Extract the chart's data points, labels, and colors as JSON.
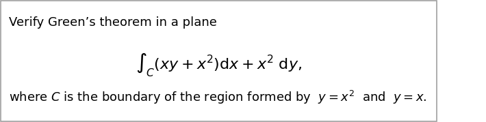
{
  "title_text": "Verify Green’s theorem in a plane",
  "integral_formula": "$\\int_C (xy + x^2)\\mathrm{d}x + x^2\\ \\mathrm{d}y,$",
  "body_text_parts": [
    "where ",
    "C",
    " is the boundary of the region formed by  ",
    "y",
    " = ",
    "x",
    "²",
    " and  ",
    "y",
    " = ",
    "x",
    "."
  ],
  "bg_color": "#ffffff",
  "border_color": "#a0a0a0",
  "title_fontsize": 13,
  "formula_fontsize": 16,
  "body_fontsize": 13,
  "fig_width": 7.1,
  "fig_height": 1.79
}
